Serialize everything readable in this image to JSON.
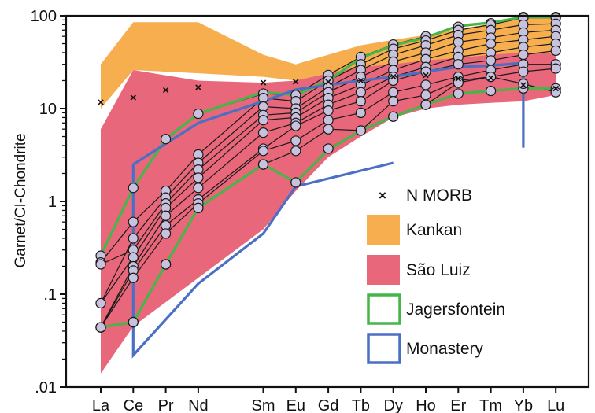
{
  "chart_data": {
    "type": "line",
    "ylabel": "Garnet/CI-Chondrite",
    "yscale": "log",
    "ylim": [
      0.01,
      100
    ],
    "yticks": [
      {
        "value": 0.01,
        "label": ".01"
      },
      {
        "value": 0.1,
        "label": ".1"
      },
      {
        "value": 1,
        "label": "1"
      },
      {
        "value": 10,
        "label": "10"
      },
      {
        "value": 100,
        "label": "100"
      }
    ],
    "categories": [
      "La",
      "Ce",
      "Pr",
      "Nd",
      "Sm",
      "Eu",
      "Gd",
      "Tb",
      "Dy",
      "Ho",
      "Er",
      "Tm",
      "Yb",
      "Lu"
    ],
    "category_positions": [
      0,
      1,
      2,
      3,
      5,
      6,
      7,
      8,
      9,
      10,
      11,
      12,
      13,
      14
    ],
    "fields": [
      {
        "name": "Kankan",
        "color": "#f6ae4e",
        "upper": [
          [
            0,
            30
          ],
          [
            1,
            85
          ],
          [
            3,
            85
          ],
          [
            5,
            38
          ],
          [
            6,
            30
          ],
          [
            7,
            38
          ],
          [
            8,
            48
          ],
          [
            9,
            55
          ],
          [
            10,
            62
          ],
          [
            11,
            72
          ],
          [
            12,
            82
          ],
          [
            13,
            100
          ],
          [
            14,
            100
          ]
        ],
        "lower": [
          [
            14,
            22
          ],
          [
            13,
            16
          ],
          [
            12,
            15
          ],
          [
            11,
            15
          ],
          [
            10,
            16
          ],
          [
            9,
            17
          ],
          [
            8,
            18
          ],
          [
            7,
            20
          ],
          [
            6,
            20
          ],
          [
            5,
            22
          ],
          [
            3,
            24
          ],
          [
            1,
            26
          ],
          [
            0,
            10
          ]
        ]
      },
      {
        "name": "São Luiz",
        "color": "#e8677a",
        "upper": [
          [
            0,
            6
          ],
          [
            1,
            26
          ],
          [
            3,
            20
          ],
          [
            5,
            19
          ],
          [
            6,
            20
          ],
          [
            7,
            24
          ],
          [
            8,
            28
          ],
          [
            9,
            30
          ],
          [
            10,
            33
          ],
          [
            11,
            35
          ],
          [
            12,
            38
          ],
          [
            13,
            40
          ],
          [
            14,
            40
          ]
        ],
        "lower": [
          [
            14,
            14
          ],
          [
            13,
            12
          ],
          [
            12,
            11.5
          ],
          [
            11,
            11
          ],
          [
            10,
            10
          ],
          [
            9,
            8
          ],
          [
            8,
            5
          ],
          [
            7,
            3
          ],
          [
            6,
            1.3
          ],
          [
            5,
            0.5
          ],
          [
            3,
            0.15
          ],
          [
            1,
            0.045
          ],
          [
            0,
            0.014
          ]
        ]
      }
    ],
    "outlines": [
      {
        "name": "Jagersfontein",
        "color": "#45b649",
        "upper": [
          [
            0,
            0.26
          ],
          [
            1,
            1.4
          ],
          [
            2,
            4.7
          ],
          [
            3,
            8.8
          ],
          [
            5,
            15
          ],
          [
            6,
            14
          ],
          [
            7,
            20
          ],
          [
            8,
            35
          ],
          [
            9,
            48
          ],
          [
            10,
            58
          ],
          [
            11,
            78
          ],
          [
            12,
            84
          ],
          [
            13,
            97
          ],
          [
            14,
            97
          ]
        ],
        "lower": [
          [
            14,
            16.5
          ],
          [
            13,
            16.5
          ],
          [
            12,
            15.5
          ],
          [
            11,
            14.5
          ],
          [
            10,
            11
          ],
          [
            9,
            8.2
          ],
          [
            8,
            5.8
          ],
          [
            7,
            3.6
          ],
          [
            6,
            1.6
          ],
          [
            5,
            2.5
          ],
          [
            3,
            0.85
          ],
          [
            2,
            0.21
          ],
          [
            1,
            0.05
          ],
          [
            0,
            0.044
          ]
        ]
      },
      {
        "name": "Monastery",
        "color": "#4a6fc4",
        "upper": [
          [
            1,
            2.5
          ],
          [
            3,
            7
          ],
          [
            5,
            12
          ],
          [
            6,
            16
          ],
          [
            7,
            18
          ],
          [
            8,
            20
          ],
          [
            9,
            22
          ],
          [
            10,
            25
          ],
          [
            11,
            28
          ],
          [
            12,
            29
          ],
          [
            13,
            31
          ],
          [
            13,
            3.8
          ]
        ],
        "lower": [
          [
            9,
            2.6
          ],
          [
            6,
            1.45
          ],
          [
            5,
            0.45
          ],
          [
            3,
            0.13
          ],
          [
            1,
            0.022
          ],
          [
            1,
            2.5
          ]
        ]
      }
    ],
    "samples": [
      [
        0.26,
        1.4,
        4.7,
        8.8,
        14.5,
        14,
        23,
        36,
        49,
        60,
        76,
        83,
        97,
        97
      ],
      [
        0.22,
        0.6,
        1.3,
        3.2,
        13,
        12,
        20,
        30,
        44,
        54,
        70,
        80,
        95,
        95
      ],
      [
        0.08,
        0.4,
        1.1,
        2.6,
        10.5,
        10,
        17,
        26,
        38,
        48,
        62,
        70,
        80,
        82
      ],
      [
        0.21,
        0.3,
        0.95,
        2.2,
        8.5,
        9,
        15,
        22,
        32,
        40,
        52,
        58,
        66,
        70
      ],
      [
        0.08,
        0.25,
        0.85,
        1.8,
        7.5,
        8,
        13,
        18,
        26,
        34,
        42,
        50,
        55,
        60
      ],
      [
        0.044,
        0.2,
        0.7,
        1.4,
        5.5,
        7,
        11,
        15,
        22,
        28,
        36,
        40,
        46,
        50
      ],
      [
        0.044,
        0.18,
        0.55,
        1.05,
        3.7,
        6.5,
        9.5,
        12,
        20,
        25,
        30,
        33,
        38,
        42
      ],
      [
        0.044,
        0.15,
        0.45,
        0.95,
        3.5,
        4.5,
        7.5,
        9,
        15,
        18,
        22,
        26,
        30,
        30
      ],
      [
        0.044,
        0.05,
        0.21,
        0.85,
        2.5,
        3.5,
        6,
        5.8,
        12,
        14,
        20,
        22,
        25,
        27
      ],
      [
        0.044,
        0.05,
        0.21,
        0.85,
        2.5,
        1.6,
        3.7,
        5.8,
        8.2,
        11,
        14.5,
        15.5,
        16.5,
        16.5
      ],
      [
        0.044,
        0.05,
        0.21,
        0.85,
        2.5,
        1.6,
        3.7,
        5.8,
        8.2,
        11,
        19,
        22,
        18.5,
        15
      ]
    ],
    "nmorb": {
      "name": "N MORB",
      "marker": "×",
      "values": [
        [
          0,
          11.7
        ],
        [
          1,
          13.2
        ],
        [
          2,
          15.8
        ],
        [
          3,
          17
        ],
        [
          5,
          19
        ],
        [
          6,
          19.5
        ],
        [
          7,
          19.5
        ],
        [
          8,
          20
        ],
        [
          9,
          22
        ],
        [
          10,
          23
        ],
        [
          11,
          21
        ],
        [
          12,
          21.5
        ],
        [
          13,
          18
        ],
        [
          14,
          16.5
        ]
      ]
    },
    "legend": {
      "position": "right",
      "entries": [
        {
          "label": "N MORB",
          "kind": "marker"
        },
        {
          "label": "Kankan",
          "kind": "fill",
          "color": "#f6ae4e"
        },
        {
          "label": "São Luiz",
          "kind": "fill",
          "color": "#e8677a"
        },
        {
          "label": "Jagersfontein",
          "kind": "outline",
          "color": "#45b649"
        },
        {
          "label": "Monastery",
          "kind": "outline",
          "color": "#4a6fc4"
        }
      ]
    }
  }
}
